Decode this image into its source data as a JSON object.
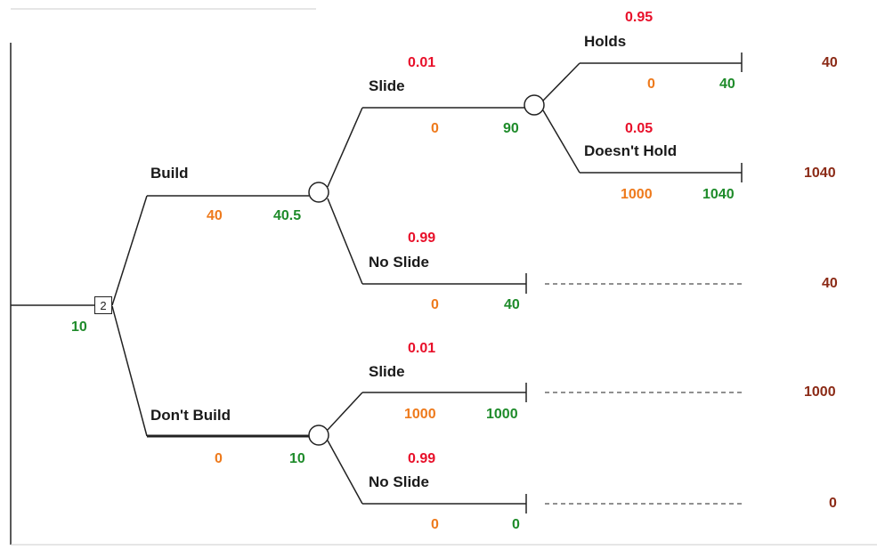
{
  "decision_node": {
    "label": "2",
    "value": "10"
  },
  "build": {
    "label": "Build",
    "cost": "40",
    "value": "40.5",
    "slide": {
      "probability": "0.01",
      "label": "Slide",
      "cost": "0",
      "value": "90",
      "holds": {
        "probability": "0.95",
        "label": "Holds",
        "cost": "0",
        "value": "40",
        "payoff": "40"
      },
      "doesnt_hold": {
        "probability": "0.05",
        "label": "Doesn't Hold",
        "cost": "1000",
        "value": "1040",
        "payoff": "1040"
      }
    },
    "no_slide": {
      "probability": "0.99",
      "label": "No Slide",
      "cost": "0",
      "value": "40",
      "payoff": "40"
    }
  },
  "dont_build": {
    "label": "Don't Build",
    "cost": "0",
    "value": "10",
    "slide": {
      "probability": "0.01",
      "label": "Slide",
      "cost": "1000",
      "value": "1000",
      "payoff": "1000"
    },
    "no_slide": {
      "probability": "0.99",
      "label": "No Slide",
      "cost": "0",
      "value": "0",
      "payoff": "0"
    }
  },
  "colors": {
    "probability": "#e8102a",
    "cost": "#ee7a1c",
    "expected_value": "#1e8b2a",
    "payoff": "#8b2a16",
    "line": "#222222"
  }
}
